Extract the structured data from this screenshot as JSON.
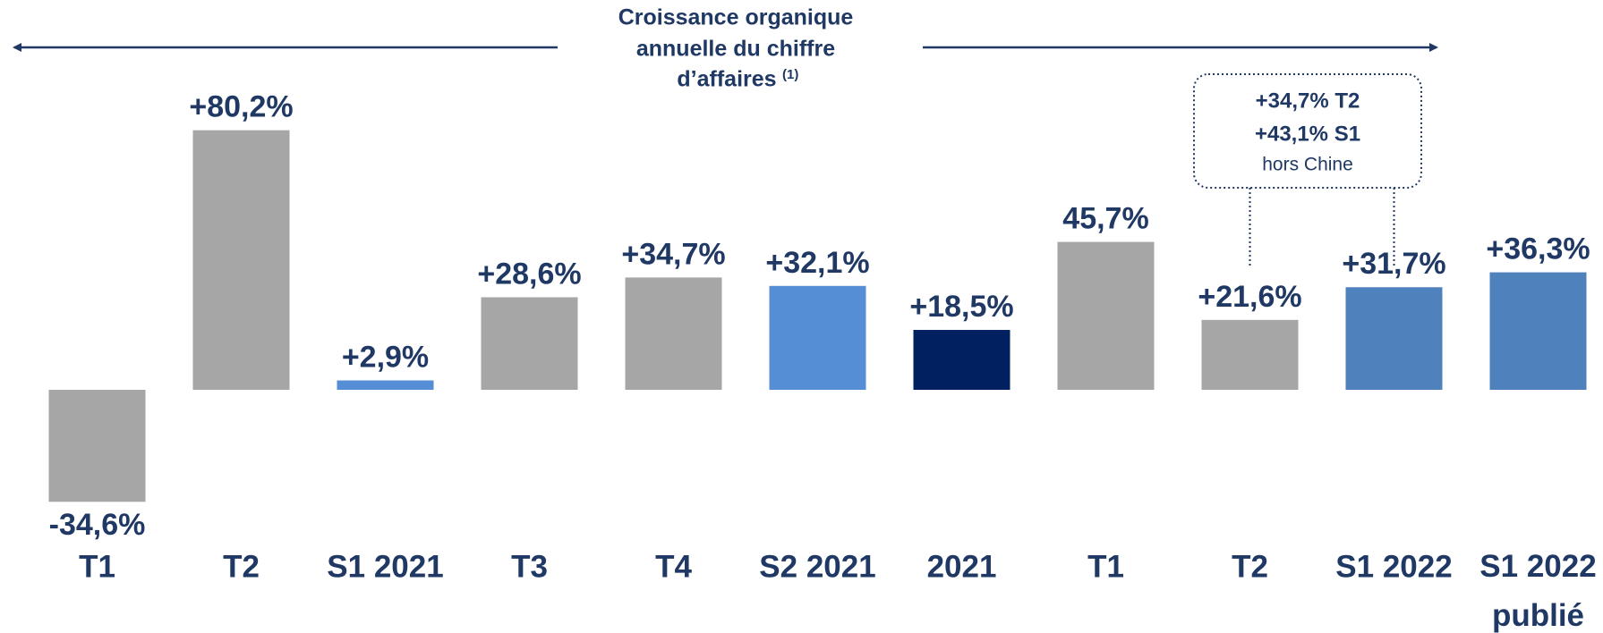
{
  "chart_data": {
    "type": "bar",
    "title_lines": [
      "Croissance organique",
      "annuelle du chiffre",
      "d’affaires"
    ],
    "title_note": "(1)",
    "categories": [
      "T1",
      "T2",
      "S1 2021",
      "T3",
      "T4",
      "S2 2021",
      "2021",
      "T1",
      "T2",
      "S1 2022",
      "S1 2022 publié"
    ],
    "values": [
      -34.6,
      80.2,
      2.9,
      28.6,
      34.7,
      32.1,
      18.5,
      45.7,
      21.6,
      31.7,
      36.3
    ],
    "value_labels": [
      "-34,6%",
      "+80,2%",
      "+2,9%",
      "+28,6%",
      "+34,7%",
      "+32,1%",
      "+18,5%",
      "45,7%",
      "+21,6%",
      "+31,7%",
      "+36,3%"
    ],
    "colors": [
      "#a6a6a6",
      "#a6a6a6",
      "#558ed5",
      "#a6a6a6",
      "#a6a6a6",
      "#558ed5",
      "#002060",
      "#a6a6a6",
      "#a6a6a6",
      "#4f81bd",
      "#4f81bd"
    ],
    "ylim": [
      -40,
      90
    ],
    "annotation": {
      "lines": [
        "+34,7% T2",
        "+43,1% S1",
        "hors Chine"
      ]
    }
  }
}
